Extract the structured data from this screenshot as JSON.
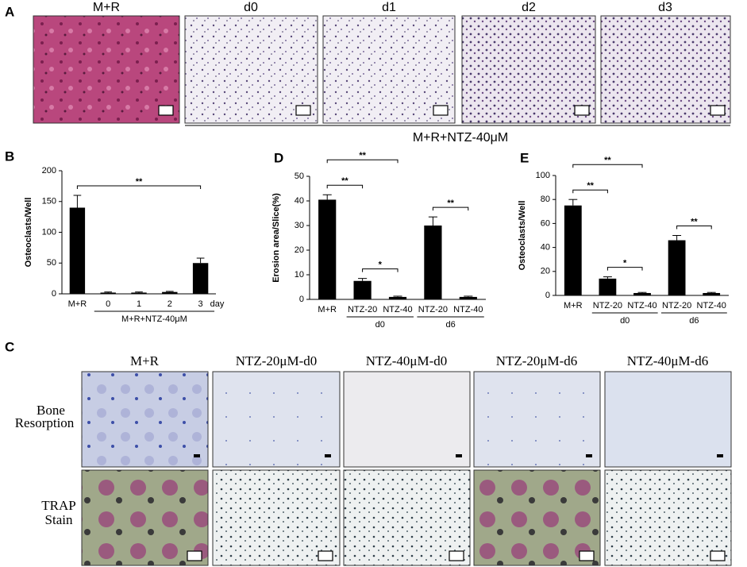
{
  "panels": {
    "A": {
      "label": "A",
      "images": [
        "M+R",
        "d0",
        "d1",
        "d2",
        "d3"
      ],
      "group": "M+R+NTZ-40μM"
    },
    "C": {
      "label": "C",
      "columns": [
        "M+R",
        "NTZ-20μM-d0",
        "NTZ-40μM-d0",
        "NTZ-20μM-d6",
        "NTZ-40μM-d6"
      ],
      "rows": [
        [
          "Bone",
          "Resorption"
        ],
        [
          "TRAP",
          "Stain"
        ]
      ]
    }
  },
  "chart_data": [
    {
      "type": "bar",
      "label": "B",
      "ylabel": "Osteoclasts/Well",
      "categories": [
        "M+R",
        "0",
        "1",
        "2",
        "3"
      ],
      "x_unit": "day",
      "groups": [
        {
          "label": "M+R+NTZ-40μM",
          "from": 1,
          "to": 4
        }
      ],
      "values": [
        140,
        2,
        2,
        3,
        50
      ],
      "errors": [
        20,
        1,
        1,
        1,
        8
      ],
      "color": "#000000",
      "ylim": [
        0,
        200
      ],
      "yticks": [
        0,
        50,
        100,
        150,
        200
      ],
      "significance": [
        {
          "from": 0,
          "to": 4,
          "label": "**"
        }
      ]
    },
    {
      "type": "bar",
      "label": "D",
      "ylabel": "Erosion area/Slice(%)",
      "categories": [
        "M+R",
        "NTZ-20",
        "NTZ-40",
        "NTZ-20",
        "NTZ-40"
      ],
      "groups": [
        {
          "label": "d0",
          "from": 1,
          "to": 2
        },
        {
          "label": "d6",
          "from": 3,
          "to": 4
        }
      ],
      "values": [
        40.5,
        7.5,
        1,
        30,
        1
      ],
      "errors": [
        2,
        1,
        0.3,
        3.5,
        0.3
      ],
      "color": "#000000",
      "ylim": [
        0,
        50
      ],
      "yticks": [
        0,
        10,
        20,
        30,
        40,
        50
      ],
      "significance": [
        {
          "from": 0,
          "to": 1,
          "label": "**"
        },
        {
          "from": 0,
          "to": 2,
          "label": "**"
        },
        {
          "from": 1,
          "to": 2,
          "label": "*"
        },
        {
          "from": 3,
          "to": 4,
          "label": "**"
        }
      ]
    },
    {
      "type": "bar",
      "label": "E",
      "ylabel": "Osteoclasts/Well",
      "categories": [
        "M+R",
        "NTZ-20",
        "NTZ-40",
        "NTZ-20",
        "NTZ-40"
      ],
      "groups": [
        {
          "label": "d0",
          "from": 1,
          "to": 2
        },
        {
          "label": "d6",
          "from": 3,
          "to": 4
        }
      ],
      "values": [
        75,
        14,
        2,
        46,
        2
      ],
      "errors": [
        5,
        1.5,
        0.5,
        4,
        0.5
      ],
      "color": "#000000",
      "ylim": [
        0,
        100
      ],
      "yticks": [
        0,
        20,
        40,
        60,
        80,
        100
      ],
      "significance": [
        {
          "from": 0,
          "to": 1,
          "label": "**"
        },
        {
          "from": 0,
          "to": 2,
          "label": "**"
        },
        {
          "from": 1,
          "to": 2,
          "label": "*"
        },
        {
          "from": 3,
          "to": 4,
          "label": "**"
        }
      ]
    }
  ]
}
